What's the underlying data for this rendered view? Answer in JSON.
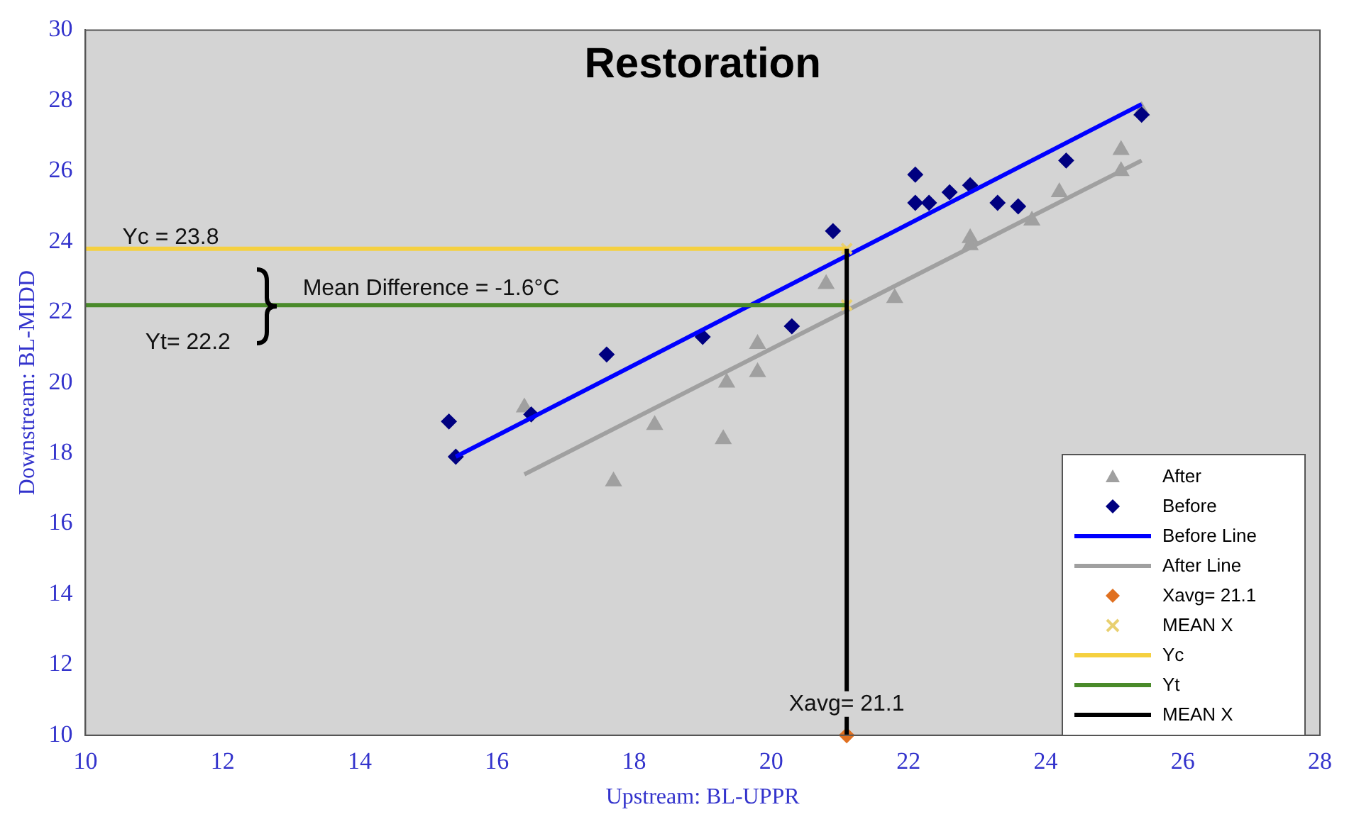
{
  "chart_data": {
    "type": "scatter",
    "title": "Restoration",
    "xlabel": "Upstream: BL-UPPR",
    "ylabel": "Downstream: BL-MIDD",
    "xlim": [
      10,
      28
    ],
    "xticks": [
      10,
      12,
      14,
      16,
      18,
      20,
      22,
      24,
      26,
      28
    ],
    "ylim": [
      10,
      30
    ],
    "yticks": [
      10,
      12,
      14,
      16,
      18,
      20,
      22,
      24,
      26,
      28,
      30
    ],
    "grid": false,
    "legend": "bottom right",
    "series": [
      {
        "name": "After",
        "type": "scatter",
        "marker": "triangle",
        "color": "#a0a0a0",
        "x": [
          16.4,
          17.7,
          18.3,
          19.3,
          19.35,
          19.8,
          19.8,
          20.8,
          21.8,
          22.9,
          22.9,
          23.8,
          24.2,
          25.1,
          25.1,
          25.4
        ],
        "values": [
          19.3,
          17.2,
          18.8,
          18.4,
          20.0,
          20.3,
          21.1,
          22.8,
          22.4,
          24.1,
          23.9,
          24.6,
          25.4,
          26.6,
          26.0,
          27.7
        ]
      },
      {
        "name": "Before",
        "type": "scatter",
        "marker": "diamond",
        "color": "#000080",
        "x": [
          15.3,
          15.4,
          16.5,
          17.6,
          19.0,
          20.3,
          20.9,
          22.1,
          22.1,
          22.3,
          22.6,
          22.9,
          23.3,
          23.6,
          24.3,
          25.4
        ],
        "values": [
          18.9,
          17.9,
          19.1,
          20.8,
          21.3,
          21.6,
          24.3,
          25.9,
          25.1,
          25.1,
          25.4,
          25.6,
          25.1,
          25.0,
          26.3,
          27.6
        ]
      },
      {
        "name": "Before Line",
        "type": "line",
        "marker": "none",
        "color": "#0000ff",
        "x": [
          15.4,
          25.4
        ],
        "values": [
          17.9,
          27.9
        ]
      },
      {
        "name": "After Line",
        "type": "line",
        "marker": "none",
        "color": "#a0a0a0",
        "x": [
          16.4,
          25.4
        ],
        "values": [
          17.4,
          26.3
        ]
      },
      {
        "name": "Xavg= 21.1",
        "type": "scatter",
        "marker": "diamond",
        "color": "#e07020",
        "x": [
          21.1
        ],
        "values": [
          10
        ]
      },
      {
        "name": "MEAN X",
        "type": "scatter",
        "marker": "cross",
        "color": "#e8d070",
        "x": [
          21.1,
          21.1
        ],
        "values": [
          23.8,
          22.2
        ]
      },
      {
        "name": "Yc",
        "type": "line",
        "marker": "none",
        "color": "#f5d040",
        "x": [
          10,
          21.1
        ],
        "values": [
          23.8,
          23.8
        ]
      },
      {
        "name": "Yt",
        "type": "line",
        "marker": "none",
        "color": "#4a8a2a",
        "x": [
          10,
          21.1
        ],
        "values": [
          22.2,
          22.2
        ]
      },
      {
        "name": "MEAN X",
        "type": "line",
        "marker": "none",
        "color": "#000000",
        "x": [
          21.1,
          21.1
        ],
        "values": [
          10,
          23.8
        ]
      }
    ],
    "annotations": [
      "Yc = 23.8",
      "Yt= 22.2",
      "Mean Difference = -1.6°C",
      {
        "text": "Xavg= 21.1",
        "x": 21.1,
        "y": 10
      }
    ]
  }
}
